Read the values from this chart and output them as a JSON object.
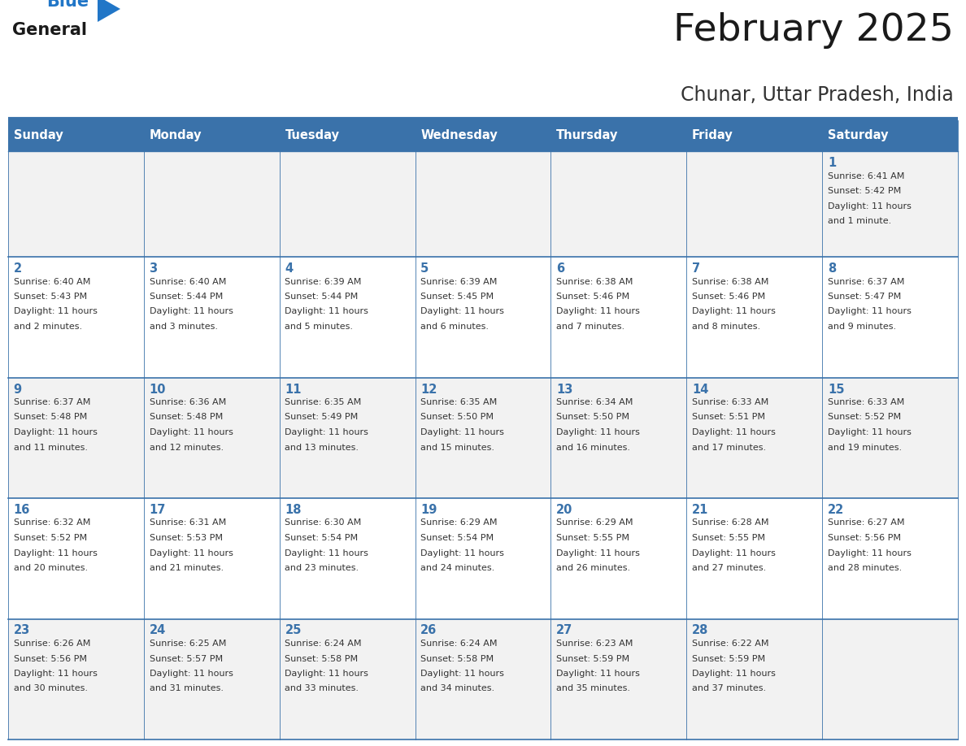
{
  "title": "February 2025",
  "subtitle": "Chunar, Uttar Pradesh, India",
  "days_of_week": [
    "Sunday",
    "Monday",
    "Tuesday",
    "Wednesday",
    "Thursday",
    "Friday",
    "Saturday"
  ],
  "header_bg": "#3A72AA",
  "header_text": "#FFFFFF",
  "cell_bg_even": "#F2F2F2",
  "cell_bg_odd": "#FFFFFF",
  "border_color": "#3A72AA",
  "title_color": "#1A1A1A",
  "subtitle_color": "#333333",
  "day_number_color": "#3A72AA",
  "cell_text_color": "#333333",
  "logo_general_color": "#1A1A1A",
  "logo_blue_color": "#2176C7",
  "calendar_data": [
    {
      "day": 1,
      "col": 6,
      "row": 0,
      "sunrise": "6:41 AM",
      "sunset": "5:42 PM",
      "daylight": "11 hours and 1 minute."
    },
    {
      "day": 2,
      "col": 0,
      "row": 1,
      "sunrise": "6:40 AM",
      "sunset": "5:43 PM",
      "daylight": "11 hours and 2 minutes."
    },
    {
      "day": 3,
      "col": 1,
      "row": 1,
      "sunrise": "6:40 AM",
      "sunset": "5:44 PM",
      "daylight": "11 hours and 3 minutes."
    },
    {
      "day": 4,
      "col": 2,
      "row": 1,
      "sunrise": "6:39 AM",
      "sunset": "5:44 PM",
      "daylight": "11 hours and 5 minutes."
    },
    {
      "day": 5,
      "col": 3,
      "row": 1,
      "sunrise": "6:39 AM",
      "sunset": "5:45 PM",
      "daylight": "11 hours and 6 minutes."
    },
    {
      "day": 6,
      "col": 4,
      "row": 1,
      "sunrise": "6:38 AM",
      "sunset": "5:46 PM",
      "daylight": "11 hours and 7 minutes."
    },
    {
      "day": 7,
      "col": 5,
      "row": 1,
      "sunrise": "6:38 AM",
      "sunset": "5:46 PM",
      "daylight": "11 hours and 8 minutes."
    },
    {
      "day": 8,
      "col": 6,
      "row": 1,
      "sunrise": "6:37 AM",
      "sunset": "5:47 PM",
      "daylight": "11 hours and 9 minutes."
    },
    {
      "day": 9,
      "col": 0,
      "row": 2,
      "sunrise": "6:37 AM",
      "sunset": "5:48 PM",
      "daylight": "11 hours and 11 minutes."
    },
    {
      "day": 10,
      "col": 1,
      "row": 2,
      "sunrise": "6:36 AM",
      "sunset": "5:48 PM",
      "daylight": "11 hours and 12 minutes."
    },
    {
      "day": 11,
      "col": 2,
      "row": 2,
      "sunrise": "6:35 AM",
      "sunset": "5:49 PM",
      "daylight": "11 hours and 13 minutes."
    },
    {
      "day": 12,
      "col": 3,
      "row": 2,
      "sunrise": "6:35 AM",
      "sunset": "5:50 PM",
      "daylight": "11 hours and 15 minutes."
    },
    {
      "day": 13,
      "col": 4,
      "row": 2,
      "sunrise": "6:34 AM",
      "sunset": "5:50 PM",
      "daylight": "11 hours and 16 minutes."
    },
    {
      "day": 14,
      "col": 5,
      "row": 2,
      "sunrise": "6:33 AM",
      "sunset": "5:51 PM",
      "daylight": "11 hours and 17 minutes."
    },
    {
      "day": 15,
      "col": 6,
      "row": 2,
      "sunrise": "6:33 AM",
      "sunset": "5:52 PM",
      "daylight": "11 hours and 19 minutes."
    },
    {
      "day": 16,
      "col": 0,
      "row": 3,
      "sunrise": "6:32 AM",
      "sunset": "5:52 PM",
      "daylight": "11 hours and 20 minutes."
    },
    {
      "day": 17,
      "col": 1,
      "row": 3,
      "sunrise": "6:31 AM",
      "sunset": "5:53 PM",
      "daylight": "11 hours and 21 minutes."
    },
    {
      "day": 18,
      "col": 2,
      "row": 3,
      "sunrise": "6:30 AM",
      "sunset": "5:54 PM",
      "daylight": "11 hours and 23 minutes."
    },
    {
      "day": 19,
      "col": 3,
      "row": 3,
      "sunrise": "6:29 AM",
      "sunset": "5:54 PM",
      "daylight": "11 hours and 24 minutes."
    },
    {
      "day": 20,
      "col": 4,
      "row": 3,
      "sunrise": "6:29 AM",
      "sunset": "5:55 PM",
      "daylight": "11 hours and 26 minutes."
    },
    {
      "day": 21,
      "col": 5,
      "row": 3,
      "sunrise": "6:28 AM",
      "sunset": "5:55 PM",
      "daylight": "11 hours and 27 minutes."
    },
    {
      "day": 22,
      "col": 6,
      "row": 3,
      "sunrise": "6:27 AM",
      "sunset": "5:56 PM",
      "daylight": "11 hours and 28 minutes."
    },
    {
      "day": 23,
      "col": 0,
      "row": 4,
      "sunrise": "6:26 AM",
      "sunset": "5:56 PM",
      "daylight": "11 hours and 30 minutes."
    },
    {
      "day": 24,
      "col": 1,
      "row": 4,
      "sunrise": "6:25 AM",
      "sunset": "5:57 PM",
      "daylight": "11 hours and 31 minutes."
    },
    {
      "day": 25,
      "col": 2,
      "row": 4,
      "sunrise": "6:24 AM",
      "sunset": "5:58 PM",
      "daylight": "11 hours and 33 minutes."
    },
    {
      "day": 26,
      "col": 3,
      "row": 4,
      "sunrise": "6:24 AM",
      "sunset": "5:58 PM",
      "daylight": "11 hours and 34 minutes."
    },
    {
      "day": 27,
      "col": 4,
      "row": 4,
      "sunrise": "6:23 AM",
      "sunset": "5:59 PM",
      "daylight": "11 hours and 35 minutes."
    },
    {
      "day": 28,
      "col": 5,
      "row": 4,
      "sunrise": "6:22 AM",
      "sunset": "5:59 PM",
      "daylight": "11 hours and 37 minutes."
    }
  ]
}
